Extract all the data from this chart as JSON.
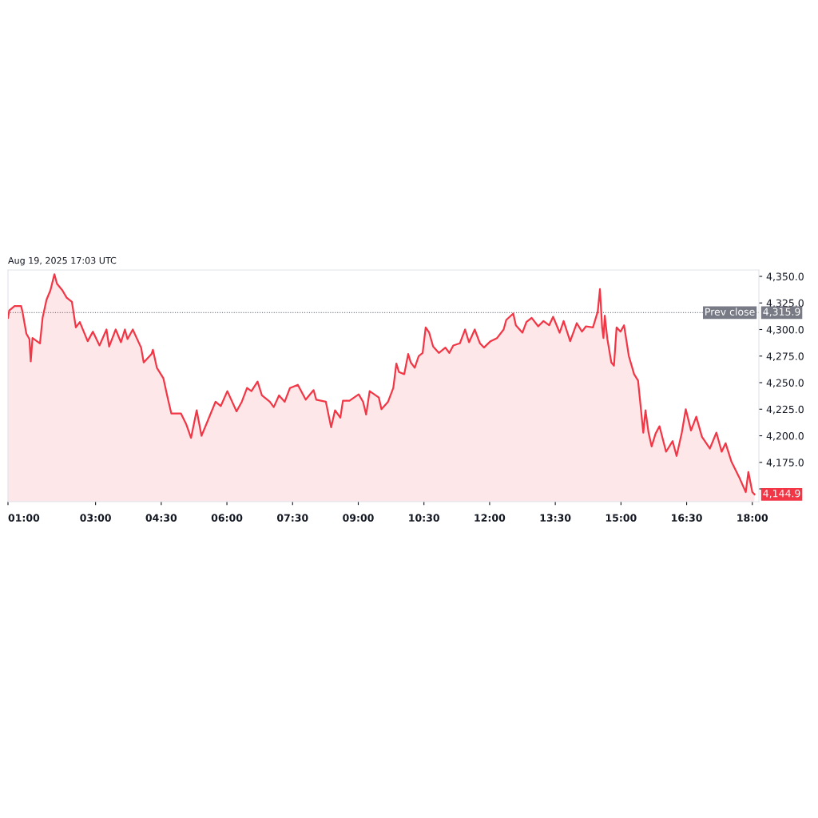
{
  "chart_data": {
    "type": "area",
    "title": "Aug 19, 2025 17:03 UTC",
    "x": [
      1.0,
      1.03,
      1.15,
      1.3,
      1.33,
      1.42,
      1.49,
      1.52,
      1.56,
      1.73,
      1.79,
      1.88,
      1.97,
      2.06,
      2.12,
      2.24,
      2.34,
      2.46,
      2.55,
      2.64,
      2.82,
      2.94,
      3.09,
      3.25,
      3.31,
      3.46,
      3.58,
      3.67,
      3.73,
      3.85,
      4.04,
      4.1,
      4.28,
      4.31,
      4.4,
      4.55,
      4.64,
      4.73,
      4.95,
      5.07,
      5.18,
      5.31,
      5.42,
      5.61,
      5.74,
      5.86,
      6.01,
      6.22,
      6.34,
      6.46,
      6.56,
      6.7,
      6.8,
      6.98,
      7.07,
      7.19,
      7.32,
      7.44,
      7.62,
      7.8,
      7.98,
      8.04,
      8.26,
      8.38,
      8.47,
      8.59,
      8.65,
      8.8,
      9.01,
      9.11,
      9.18,
      9.26,
      9.47,
      9.53,
      9.68,
      9.8,
      9.87,
      9.93,
      10.05,
      10.14,
      10.2,
      10.29,
      10.38,
      10.47,
      10.54,
      10.62,
      10.71,
      10.84,
      10.99,
      11.08,
      11.17,
      11.32,
      11.44,
      11.53,
      11.66,
      11.78,
      11.87,
      12.02,
      12.17,
      12.32,
      12.38,
      12.54,
      12.6,
      12.75,
      12.84,
      12.96,
      13.11,
      13.23,
      13.36,
      13.45,
      13.6,
      13.69,
      13.84,
      13.99,
      14.11,
      14.2,
      14.36,
      14.47,
      14.52,
      14.57,
      14.6,
      14.63,
      14.69,
      14.78,
      14.84,
      14.9,
      14.99,
      15.07,
      15.18,
      15.3,
      15.39,
      15.51,
      15.56,
      15.63,
      15.7,
      15.79,
      15.88,
      16.03,
      16.18,
      16.27,
      16.39,
      16.48,
      16.6,
      16.72,
      16.85,
      17.03,
      17.18,
      17.3,
      17.39,
      17.52,
      17.7,
      17.85,
      17.91,
      18.0,
      18.05
    ],
    "series": [
      {
        "color": "#f23645",
        "values": [
          4311,
          4318,
          4322,
          4322,
          4317,
          4296,
          4291,
          4270,
          4292,
          4287,
          4311,
          4328,
          4337,
          4352,
          4343,
          4337,
          4330,
          4326,
          4302,
          4307,
          4289,
          4298,
          4285,
          4300,
          4284,
          4300,
          4288,
          4300,
          4291,
          4300,
          4283,
          4269,
          4277,
          4281,
          4264,
          4254,
          4237,
          4221,
          4221,
          4211,
          4198,
          4224,
          4200,
          4219,
          4232,
          4228,
          4242,
          4223,
          4232,
          4245,
          4242,
          4251,
          4238,
          4232,
          4227,
          4238,
          4232,
          4245,
          4248,
          4234,
          4243,
          4234,
          4232,
          4208,
          4224,
          4217,
          4233,
          4233,
          4239,
          4232,
          4220,
          4242,
          4236,
          4225,
          4232,
          4245,
          4268,
          4260,
          4258,
          4277,
          4269,
          4264,
          4275,
          4278,
          4302,
          4297,
          4284,
          4278,
          4283,
          4278,
          4285,
          4287,
          4300,
          4288,
          4300,
          4287,
          4283,
          4289,
          4292,
          4300,
          4309,
          4315,
          4304,
          4297,
          4307,
          4311,
          4303,
          4308,
          4304,
          4312,
          4297,
          4308,
          4289,
          4306,
          4298,
          4303,
          4302,
          4317,
          4338,
          4302,
          4292,
          4313,
          4291,
          4269,
          4266,
          4302,
          4298,
          4304,
          4275,
          4258,
          4252,
          4203,
          4224,
          4203,
          4190,
          4202,
          4209,
          4185,
          4195,
          4181,
          4203,
          4225,
          4205,
          4218,
          4199,
          4188,
          4203,
          4185,
          4193,
          4176,
          4161,
          4147,
          4166,
          4147,
          4144.9
        ]
      }
    ],
    "xlim": [
      1,
      18.15
    ],
    "ylim": [
      4138,
      4356
    ],
    "xticks": [
      {
        "value": 1,
        "label": "01:00"
      },
      {
        "value": 3,
        "label": "03:00"
      },
      {
        "value": 4.5,
        "label": "04:30"
      },
      {
        "value": 6,
        "label": "06:00"
      },
      {
        "value": 7.5,
        "label": "07:30"
      },
      {
        "value": 9,
        "label": "09:00"
      },
      {
        "value": 10.5,
        "label": "10:30"
      },
      {
        "value": 12,
        "label": "12:00"
      },
      {
        "value": 13.5,
        "label": "13:30"
      },
      {
        "value": 15,
        "label": "15:00"
      },
      {
        "value": 16.5,
        "label": "16:30"
      },
      {
        "value": 18,
        "label": "18:00"
      }
    ],
    "yticks": [
      {
        "value": 4150,
        "label": null
      },
      {
        "value": 4175,
        "label": "4,175.0"
      },
      {
        "value": 4200,
        "label": "4,200.0"
      },
      {
        "value": 4225,
        "label": "4,225.0"
      },
      {
        "value": 4250,
        "label": "4,250.0"
      },
      {
        "value": 4275,
        "label": "4,275.0"
      },
      {
        "value": 4300,
        "label": "4,300.0"
      },
      {
        "value": 4325,
        "label": "4,325.0"
      },
      {
        "value": 4350,
        "label": "4,350.0"
      }
    ],
    "ref_lines": [
      {
        "axis": "y",
        "value": 4315.9,
        "label": "Prev close",
        "color": "#787b86",
        "line_style": "dotted"
      }
    ],
    "annotations": [
      "4,315.9",
      {
        "text": "4,144.9",
        "x": 18.05,
        "y": 4144.9
      }
    ],
    "grid": false,
    "legend": false
  }
}
